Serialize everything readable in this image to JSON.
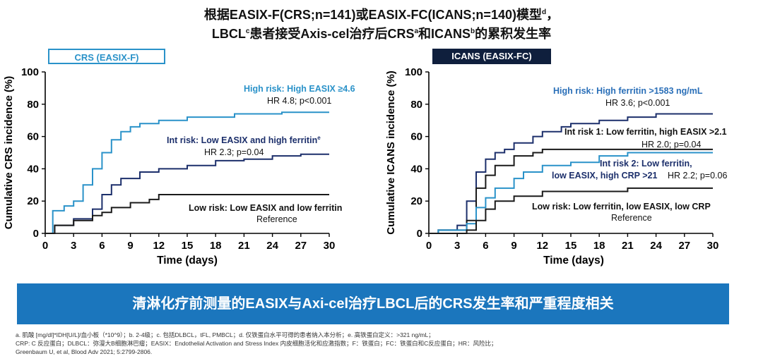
{
  "title": {
    "line1": "根据EASIX-F(CRS;n=141)或EASIX-FC(ICANS;n=140)模型",
    "line1_sup": "d",
    "line1_tail": "，",
    "line2_a": "LBCL",
    "line2_sup_a": "c",
    "line2_b": "患者接受Axis-cel治疗后CRS",
    "line2_sup_b": "a",
    "line2_c": "和ICANS",
    "line2_sup_c": "b",
    "line2_d": "的累积发生率"
  },
  "chart_data": [
    {
      "type": "line",
      "tag": "CRS (EASIX-F)",
      "xlabel": "Time (days)",
      "ylabel": "Cumulative CRS incidence (%)",
      "xlim": [
        0,
        30
      ],
      "ylim": [
        0,
        100
      ],
      "xticks": [
        0,
        3,
        6,
        9,
        12,
        15,
        18,
        21,
        24,
        27,
        30
      ],
      "yticks": [
        0,
        20,
        40,
        60,
        80,
        100
      ],
      "series": [
        {
          "color": "#2a92c9",
          "points": [
            [
              0,
              0
            ],
            [
              0.8,
              0
            ],
            [
              0.8,
              14
            ],
            [
              2,
              14
            ],
            [
              2,
              17
            ],
            [
              3,
              17
            ],
            [
              3,
              20
            ],
            [
              4,
              20
            ],
            [
              4,
              30
            ],
            [
              5,
              30
            ],
            [
              5,
              40
            ],
            [
              6,
              40
            ],
            [
              6,
              50
            ],
            [
              7,
              50
            ],
            [
              7,
              58
            ],
            [
              8,
              58
            ],
            [
              8,
              63
            ],
            [
              9,
              63
            ],
            [
              9,
              66
            ],
            [
              10,
              66
            ],
            [
              10,
              68
            ],
            [
              12,
              68
            ],
            [
              12,
              70
            ],
            [
              15,
              70
            ],
            [
              15,
              72
            ],
            [
              20,
              72
            ],
            [
              20,
              74
            ],
            [
              25,
              74
            ],
            [
              25,
              75
            ],
            [
              30,
              75
            ]
          ]
        },
        {
          "color": "#1c2f6b",
          "points": [
            [
              0,
              0
            ],
            [
              1,
              0
            ],
            [
              1,
              5
            ],
            [
              3,
              5
            ],
            [
              3,
              9
            ],
            [
              5,
              9
            ],
            [
              5,
              15
            ],
            [
              6,
              15
            ],
            [
              6,
              24
            ],
            [
              7,
              24
            ],
            [
              7,
              30
            ],
            [
              8,
              30
            ],
            [
              8,
              34
            ],
            [
              10,
              34
            ],
            [
              10,
              38
            ],
            [
              12,
              38
            ],
            [
              12,
              40
            ],
            [
              15,
              40
            ],
            [
              15,
              42
            ],
            [
              18,
              42
            ],
            [
              18,
              45
            ],
            [
              21,
              45
            ],
            [
              21,
              46
            ],
            [
              24,
              46
            ],
            [
              24,
              48
            ],
            [
              27,
              48
            ],
            [
              27,
              49
            ],
            [
              30,
              49
            ]
          ]
        },
        {
          "color": "#1a1a1a",
          "points": [
            [
              0,
              0
            ],
            [
              1,
              0
            ],
            [
              1,
              5
            ],
            [
              3,
              5
            ],
            [
              3,
              8
            ],
            [
              5,
              8
            ],
            [
              5,
              11
            ],
            [
              6,
              11
            ],
            [
              6,
              13
            ],
            [
              7,
              13
            ],
            [
              7,
              16
            ],
            [
              9,
              16
            ],
            [
              9,
              19
            ],
            [
              11,
              19
            ],
            [
              11,
              21
            ],
            [
              12,
              21
            ],
            [
              12,
              24
            ],
            [
              30,
              24
            ]
          ]
        }
      ],
      "annotations": [
        {
          "text": "High risk: High EASIX ≥4.6",
          "color": "#2a92c9"
        },
        {
          "text": "HR 4.8; p<0.001",
          "color": "#111111"
        },
        {
          "text": "Int risk: Low EASIX and high ferritin",
          "sup": "e",
          "color": "#1c2f6b"
        },
        {
          "text": "HR 2.3; p=0.04",
          "color": "#111111"
        },
        {
          "text": "Low risk: Low EASIX and low ferritin",
          "color": "#111111"
        },
        {
          "text": "Reference",
          "color": "#111111"
        }
      ]
    },
    {
      "type": "line",
      "tag": "ICANS (EASIX-FC)",
      "xlabel": "Time (days)",
      "ylabel": "Cumulative ICANS incidence (%)",
      "xlim": [
        0,
        30
      ],
      "ylim": [
        0,
        100
      ],
      "xticks": [
        0,
        3,
        6,
        9,
        12,
        15,
        18,
        21,
        24,
        27,
        30
      ],
      "yticks": [
        0,
        20,
        40,
        60,
        80,
        100
      ],
      "series": [
        {
          "color": "#1c2f6b",
          "points": [
            [
              0,
              0
            ],
            [
              1,
              0
            ],
            [
              1,
              2
            ],
            [
              3,
              2
            ],
            [
              3,
              5
            ],
            [
              4,
              5
            ],
            [
              4,
              20
            ],
            [
              5,
              20
            ],
            [
              5,
              38
            ],
            [
              6,
              38
            ],
            [
              6,
              46
            ],
            [
              7,
              46
            ],
            [
              7,
              50
            ],
            [
              8,
              50
            ],
            [
              8,
              52
            ],
            [
              9,
              52
            ],
            [
              9,
              56
            ],
            [
              11,
              56
            ],
            [
              11,
              60
            ],
            [
              12,
              60
            ],
            [
              12,
              63
            ],
            [
              14,
              63
            ],
            [
              14,
              66
            ],
            [
              15,
              66
            ],
            [
              15,
              68
            ],
            [
              18,
              68
            ],
            [
              18,
              70
            ],
            [
              21,
              70
            ],
            [
              21,
              72
            ],
            [
              24,
              72
            ],
            [
              24,
              74
            ],
            [
              30,
              74
            ]
          ]
        },
        {
          "color": "#1a1a1a",
          "points": [
            [
              0,
              0
            ],
            [
              1,
              0
            ],
            [
              1,
              2
            ],
            [
              4,
              2
            ],
            [
              4,
              8
            ],
            [
              5,
              8
            ],
            [
              5,
              28
            ],
            [
              6,
              28
            ],
            [
              6,
              36
            ],
            [
              7,
              36
            ],
            [
              7,
              42
            ],
            [
              9,
              42
            ],
            [
              9,
              48
            ],
            [
              11,
              48
            ],
            [
              11,
              50
            ],
            [
              12,
              50
            ],
            [
              12,
              52
            ],
            [
              30,
              52
            ]
          ]
        },
        {
          "color": "#2a92c9",
          "points": [
            [
              0,
              0
            ],
            [
              1,
              0
            ],
            [
              1,
              2
            ],
            [
              4,
              2
            ],
            [
              4,
              6
            ],
            [
              5,
              6
            ],
            [
              5,
              16
            ],
            [
              6,
              16
            ],
            [
              6,
              22
            ],
            [
              7,
              22
            ],
            [
              7,
              28
            ],
            [
              9,
              28
            ],
            [
              9,
              34
            ],
            [
              10,
              34
            ],
            [
              10,
              38
            ],
            [
              12,
              38
            ],
            [
              12,
              42
            ],
            [
              15,
              42
            ],
            [
              15,
              44
            ],
            [
              18,
              44
            ],
            [
              18,
              48
            ],
            [
              21,
              48
            ],
            [
              21,
              50
            ],
            [
              30,
              50
            ]
          ]
        },
        {
          "color": "#1a1a1a",
          "points": [
            [
              0,
              0
            ],
            [
              4,
              0
            ],
            [
              4,
              2
            ],
            [
              5,
              2
            ],
            [
              5,
              8
            ],
            [
              6,
              8
            ],
            [
              6,
              15
            ],
            [
              7,
              15
            ],
            [
              7,
              20
            ],
            [
              9,
              20
            ],
            [
              9,
              23
            ],
            [
              12,
              23
            ],
            [
              12,
              26
            ],
            [
              21,
              26
            ],
            [
              21,
              28
            ],
            [
              30,
              28
            ]
          ]
        }
      ],
      "annotations": [
        {
          "text": "High risk: High ferritin >1583 ng/mL",
          "color": "#2a6fb8"
        },
        {
          "text": "HR 3.6; p<0.001",
          "color": "#111111"
        },
        {
          "text": "Int risk 1: Low ferritin, high EASIX >2.1",
          "color": "#111111"
        },
        {
          "text": "HR 2.0; p=0.04",
          "color": "#111111"
        },
        {
          "text": "Int risk 2: Low ferritin,",
          "color": "#1c2f6b"
        },
        {
          "text": "low EASIX, high CRP >21",
          "color": "#1c2f6b"
        },
        {
          "text": "HR 2.2; p=0.06",
          "color": "#111111"
        },
        {
          "text": "Low risk: Low ferritin, low EASIX, low CRP",
          "color": "#111111"
        },
        {
          "text": "Reference",
          "color": "#111111"
        }
      ]
    }
  ],
  "banner": "清淋化疗前测量的EASIX与Axi-cel治疗LBCL后的CRS发生率和严重程度相关",
  "footnotes": [
    "a. 肌酸 [mg/dl]*IDH[U/L]/血小板（*10^9）；b. 2-4级；c. 包括DLBCL，tFL, PMBCL；d. 仅铁蛋白水平可得的患者纳入本分析；e. 高铁蛋白定义：>321 ng/mL；",
    "CRP: C 反应蛋白；DLBCL：弥漫大B细胞淋巴瘤；EASIX：Endothelial Activation and Stress Index 内皮细胞活化和应激指数；F：铁蛋白；FC：铁蛋白和C反应蛋白；HR：风险比；",
    "Greenbaum U, et al, Blood Adv 2021; 5:2799-2806."
  ]
}
